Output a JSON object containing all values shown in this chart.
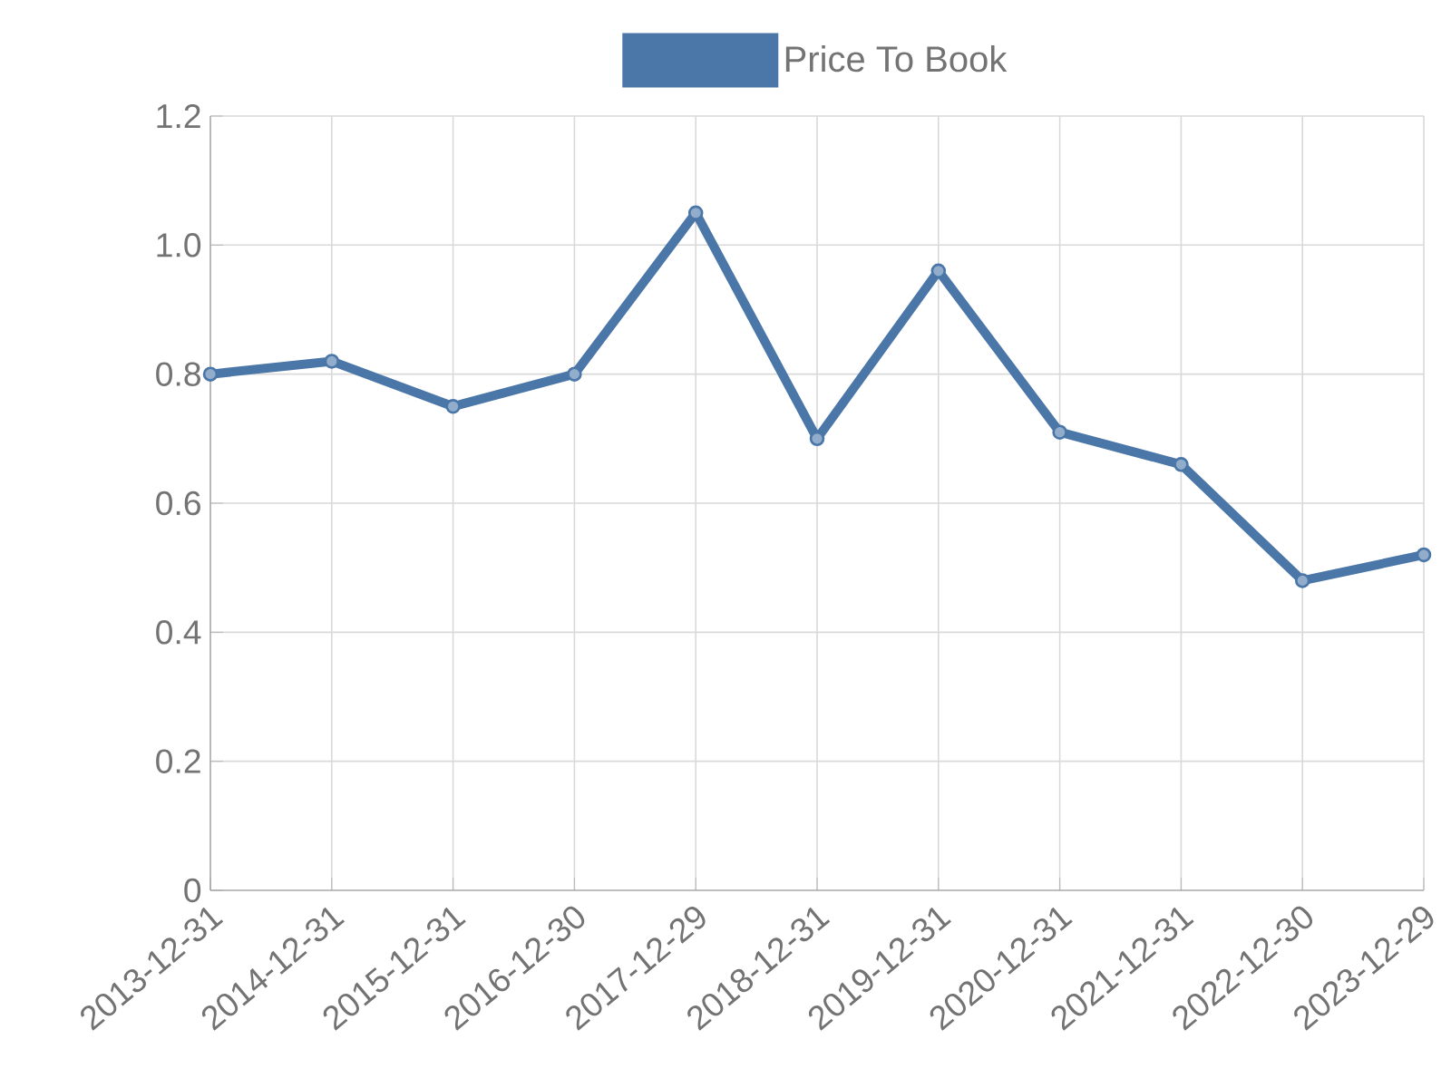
{
  "chart_data": {
    "type": "line",
    "categories": [
      "2013-12-31",
      "2014-12-31",
      "2015-12-31",
      "2016-12-30",
      "2017-12-29",
      "2018-12-31",
      "2019-12-31",
      "2020-12-31",
      "2021-12-31",
      "2022-12-30",
      "2023-12-29"
    ],
    "series": [
      {
        "name": "Price To Book",
        "color": "#4a76a8",
        "values": [
          0.8,
          0.82,
          0.75,
          0.8,
          1.05,
          0.7,
          0.96,
          0.71,
          0.66,
          0.48,
          0.52
        ]
      }
    ],
    "ylim": [
      0,
      1.2
    ],
    "yticks": [
      0,
      0.2,
      0.4,
      0.6,
      0.8,
      {
        "value": 1,
        "label": "1.0"
      },
      1.2
    ],
    "grid": true,
    "legend": "top",
    "marker": "circle",
    "line_style": "solid"
  }
}
